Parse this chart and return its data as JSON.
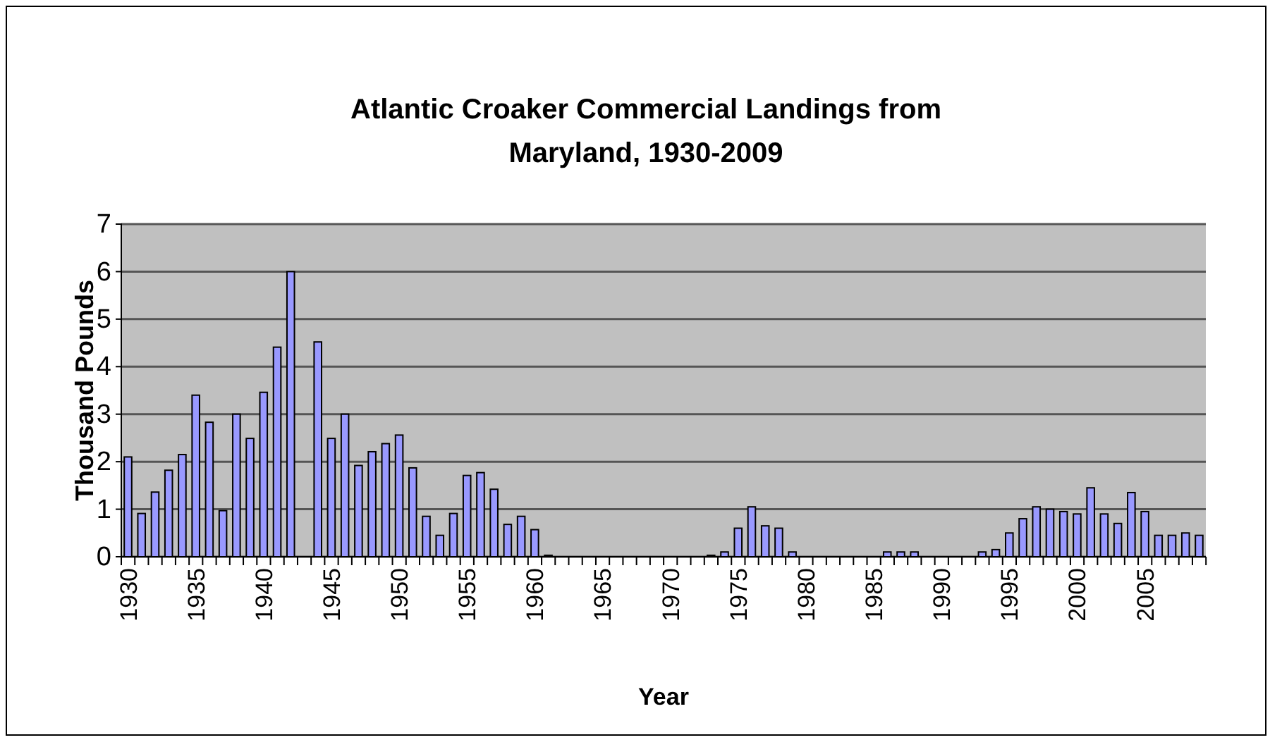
{
  "chart_data": {
    "type": "bar",
    "title": "Atlantic Croaker Commercial Landings from Maryland, 1930-2009",
    "xlabel": "Year",
    "ylabel": "Thousand Pounds",
    "categories": [
      "1930",
      null,
      null,
      null,
      null,
      "1935",
      null,
      null,
      null,
      null,
      "1940",
      null,
      null,
      null,
      null,
      "1945",
      null,
      null,
      null,
      null,
      "1950",
      null,
      null,
      null,
      null,
      "1955",
      null,
      null,
      null,
      null,
      "1960",
      null,
      null,
      null,
      null,
      "1965",
      null,
      null,
      null,
      null,
      "1970",
      null,
      null,
      null,
      null,
      "1975",
      null,
      null,
      null,
      null,
      "1980",
      null,
      null,
      null,
      null,
      "1985",
      null,
      null,
      null,
      null,
      "1990",
      null,
      null,
      null,
      null,
      "1995",
      null,
      null,
      null,
      null,
      "2000",
      null,
      null,
      null,
      null,
      "2005",
      null,
      null,
      null,
      null
    ],
    "values": [
      2.1,
      0.91,
      1.36,
      1.82,
      2.15,
      3.4,
      2.83,
      0.97,
      3.0,
      2.49,
      3.46,
      4.41,
      6.0,
      0,
      4.52,
      2.49,
      3.0,
      1.92,
      2.21,
      2.38,
      2.56,
      1.87,
      0.85,
      0.45,
      0.91,
      1.71,
      1.77,
      1.42,
      0.68,
      0.85,
      0.57,
      0.03,
      0,
      0,
      0,
      0,
      0,
      0,
      0,
      0,
      0,
      0,
      0,
      0.03,
      0.1,
      0.6,
      1.05,
      0.65,
      0.6,
      0.1,
      0,
      0,
      0,
      0,
      0,
      0,
      0.1,
      0.1,
      0.1,
      0,
      0,
      0,
      0,
      0.1,
      0.15,
      0.5,
      0.8,
      1.05,
      1.0,
      0.95,
      0.9,
      1.45,
      0.9,
      0.7,
      1.35,
      0.95,
      0.45,
      0.45,
      0.5,
      0.45
    ],
    "color": "#9999ff",
    "ylim": [
      0,
      7
    ],
    "yticks": [
      0,
      1,
      2,
      3,
      4,
      5,
      6,
      7
    ],
    "grid": "y"
  }
}
